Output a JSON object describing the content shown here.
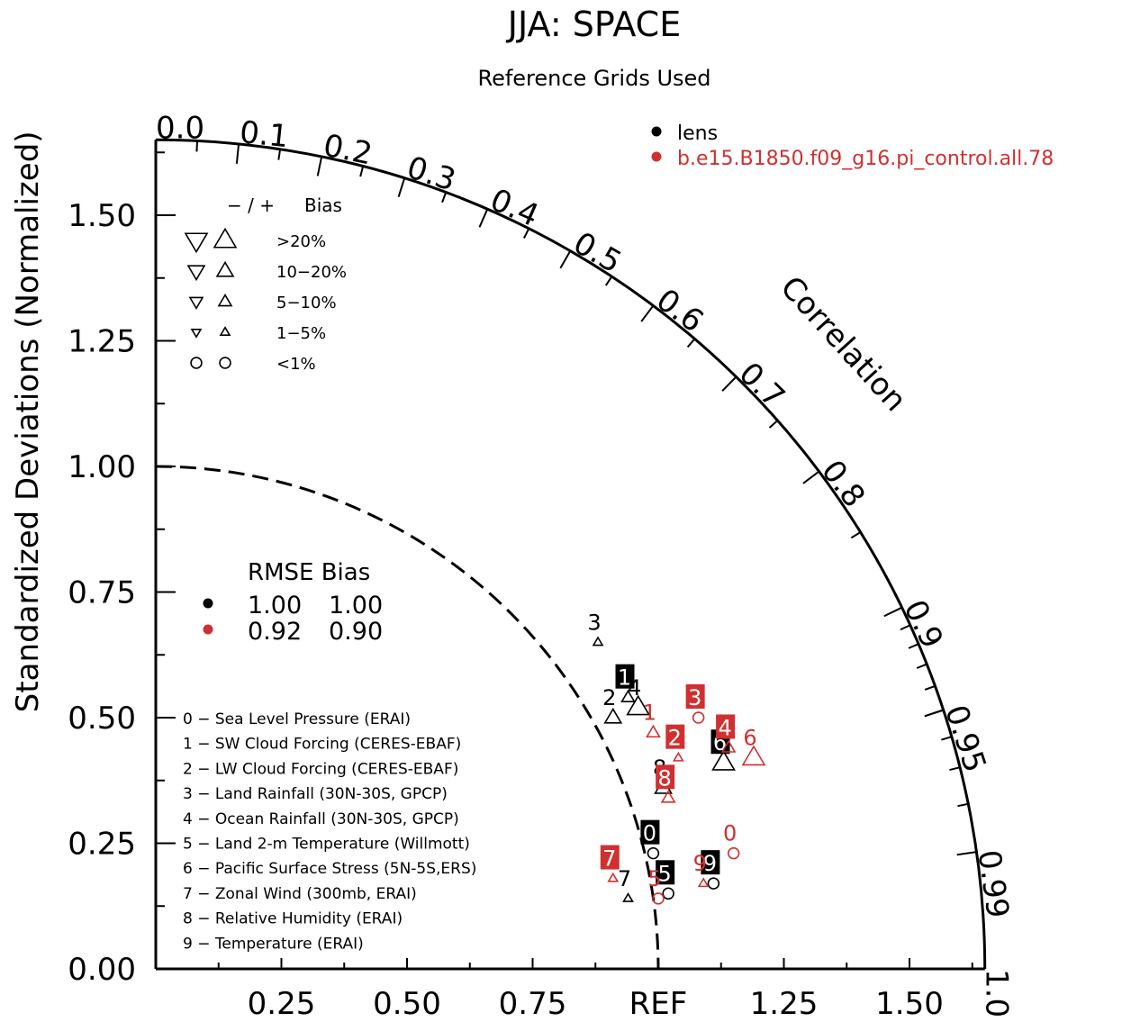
{
  "title": "JJA: SPACE",
  "subtitle": "Reference Grids Used",
  "colors": {
    "black": "#000000",
    "red": "#d03030"
  },
  "chart_data": {
    "type": "scatter",
    "subtype": "taylor-diagram",
    "ylabel": "Standardized Deviations (Normalized)",
    "corr_label": "Correlation",
    "x_tick_labels": [
      "0.25",
      "0.50",
      "0.75",
      "REF",
      "1.25",
      "1.50"
    ],
    "y_tick_labels": [
      "0.00",
      "0.25",
      "0.50",
      "0.75",
      "1.00",
      "1.25",
      "1.50"
    ],
    "corr_tick_labels": [
      "0.0",
      "0.1",
      "0.2",
      "0.3",
      "0.4",
      "0.5",
      "0.6",
      "0.7",
      "0.8",
      "0.9",
      "0.95",
      "0.99",
      "1.0"
    ],
    "corr_ticks": [
      0.0,
      0.1,
      0.2,
      0.3,
      0.4,
      0.5,
      0.6,
      0.7,
      0.8,
      0.9,
      0.95,
      0.99,
      1.0
    ],
    "std_max": 1.65,
    "legend": [
      {
        "name": "lens",
        "color": "#000000"
      },
      {
        "name": "b.e15.B1850.f09_g16.pi_control.all.78",
        "color": "#d03030"
      }
    ],
    "bias_legend": {
      "header_left": "− / +",
      "header_right": "Bias",
      "rows": [
        ">20%",
        "10−20%",
        "5−10%",
        "1−5%",
        "<1%"
      ]
    },
    "rmse_table": {
      "header": "RMSE  Bias",
      "rows": [
        {
          "rmse": "1.00",
          "bias": "1.00",
          "color": "#000000"
        },
        {
          "rmse": "0.92",
          "bias": "0.90",
          "color": "#d03030"
        }
      ]
    },
    "variables": [
      "0 − Sea Level Pressure (ERAI)",
      "1 − SW Cloud Forcing (CERES-EBAF)",
      "2 − LW Cloud Forcing (CERES-EBAF)",
      "3 − Land Rainfall (30N-30S, GPCP)",
      "4 − Ocean Rainfall (30N-30S, GPCP)",
      "5 − Land 2-m Temperature (Willmott)",
      "6 − Pacific Surface Stress (5N-5S,ERS)",
      "7 − Zonal Wind (300mb, ERAI)",
      "8 − Relative Humidity (ERAI)",
      "9 − Temperature (ERAI)"
    ],
    "series": [
      {
        "name": "lens",
        "color": "#000000",
        "points": [
          {
            "id": "0",
            "x": 0.99,
            "y": 0.23,
            "marker": "circle",
            "size": "s"
          },
          {
            "id": "1",
            "x": 0.94,
            "y": 0.54,
            "marker": "tri-up",
            "size": "s"
          },
          {
            "id": "2",
            "x": 0.91,
            "y": 0.5,
            "marker": "tri-up",
            "size": "m"
          },
          {
            "id": "3",
            "x": 0.88,
            "y": 0.65,
            "marker": "tri-up",
            "size": "xs"
          },
          {
            "id": "4",
            "x": 0.96,
            "y": 0.52,
            "marker": "tri-up",
            "size": "l"
          },
          {
            "id": "5",
            "x": 1.02,
            "y": 0.15,
            "marker": "circle",
            "size": "s"
          },
          {
            "id": "6",
            "x": 1.13,
            "y": 0.41,
            "marker": "tri-up",
            "size": "l"
          },
          {
            "id": "7",
            "x": 0.94,
            "y": 0.14,
            "marker": "tri-up",
            "size": "xs"
          },
          {
            "id": "8",
            "x": 1.01,
            "y": 0.36,
            "marker": "tri-up",
            "size": "m"
          },
          {
            "id": "9",
            "x": 1.11,
            "y": 0.17,
            "marker": "circle",
            "size": "s"
          }
        ]
      },
      {
        "name": "b.e15.B1850.f09_g16.pi_control.all.78",
        "color": "#d03030",
        "points": [
          {
            "id": "0",
            "x": 1.15,
            "y": 0.23,
            "marker": "circle",
            "size": "s"
          },
          {
            "id": "1",
            "x": 0.99,
            "y": 0.47,
            "marker": "tri-up",
            "size": "s"
          },
          {
            "id": "2",
            "x": 1.04,
            "y": 0.42,
            "marker": "tri-up",
            "size": "xs"
          },
          {
            "id": "3",
            "x": 1.08,
            "y": 0.5,
            "marker": "circle",
            "size": "s"
          },
          {
            "id": "4",
            "x": 1.14,
            "y": 0.44,
            "marker": "tri-up",
            "size": "s"
          },
          {
            "id": "5",
            "x": 1.0,
            "y": 0.14,
            "marker": "circle",
            "size": "s"
          },
          {
            "id": "6",
            "x": 1.19,
            "y": 0.42,
            "marker": "tri-up",
            "size": "l"
          },
          {
            "id": "7",
            "x": 0.91,
            "y": 0.18,
            "marker": "tri-up",
            "size": "xs"
          },
          {
            "id": "8",
            "x": 1.02,
            "y": 0.34,
            "marker": "tri-up",
            "size": "s"
          },
          {
            "id": "9",
            "x": 1.09,
            "y": 0.17,
            "marker": "tri-up",
            "size": "xs"
          }
        ]
      }
    ]
  }
}
